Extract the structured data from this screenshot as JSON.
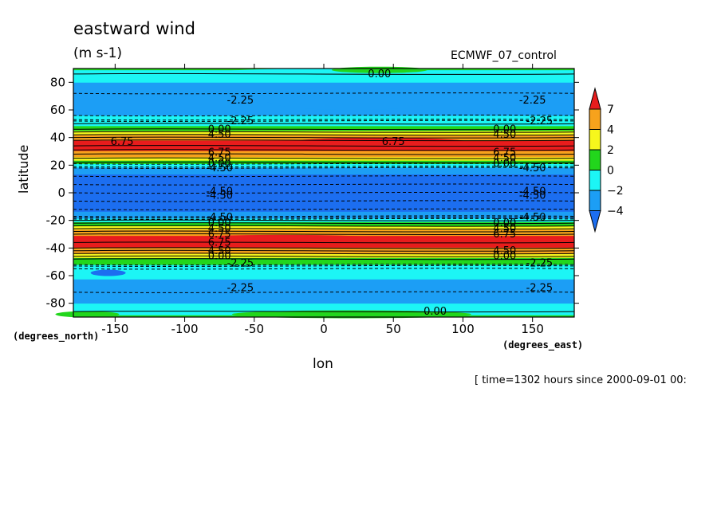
{
  "chart_data": {
    "type": "heatmap",
    "title": "eastward wind",
    "units": "(m s-1)",
    "dataset": "ECMWF_07_control",
    "xlabel": "lon",
    "ylabel": "latitude",
    "x_unit_note": "(degrees_east)",
    "y_unit_note": "(degrees_north)",
    "time_info": "[ time=1302 hours since 2000-09-01 00:",
    "xlim": [
      -180,
      180
    ],
    "ylim": [
      -90,
      90
    ],
    "x_ticks": [
      -150,
      -100,
      -50,
      0,
      50,
      100,
      150
    ],
    "y_ticks": [
      -80,
      -60,
      -40,
      -20,
      0,
      20,
      40,
      60,
      80
    ],
    "x_tick_labels": [
      "-150",
      "-100",
      "-50",
      "0",
      "50",
      "100",
      "150"
    ],
    "y_tick_labels": [
      "-80",
      "-60",
      "-40",
      "-20",
      "0",
      "20",
      "40",
      "60",
      "80"
    ],
    "colorbar": {
      "levels": [
        7,
        4,
        2,
        0,
        -2,
        -4
      ],
      "labels": [
        "7",
        "4",
        "2",
        "0",
        "−2",
        "−4"
      ],
      "colors": [
        "#e81d1d",
        "#f7a21c",
        "#f7f71c",
        "#22d61c",
        "#1cf5f5",
        "#1c9ef5",
        "#1c6ef0"
      ]
    },
    "zonal_profile": {
      "lat": [
        -90,
        -84,
        -76,
        -64,
        -56,
        -50,
        -46,
        -43,
        -40,
        -37,
        -34,
        -30,
        -27,
        -24,
        -21,
        -18,
        -12,
        -6,
        0,
        6,
        12,
        18,
        21,
        24,
        27,
        30,
        34,
        38,
        41,
        44,
        47,
        50,
        56,
        66,
        76,
        84,
        90
      ],
      "u": [
        0.5,
        -1.5,
        -2.5,
        -2.2,
        -1.2,
        0.5,
        2.5,
        4.5,
        6.75,
        8.5,
        8.0,
        6.75,
        4.5,
        2.0,
        0.0,
        -2.5,
        -4.5,
        -4.8,
        -4.8,
        -4.8,
        -4.5,
        -2.5,
        0.0,
        2.5,
        5.0,
        6.75,
        8.5,
        7.0,
        4.5,
        2.5,
        0.5,
        -0.5,
        -2.0,
        -3.0,
        -2.5,
        -1.5,
        0.3
      ]
    },
    "contour_labels": [
      {
        "text": "0.00",
        "lon": 40,
        "lat": 86
      },
      {
        "text": "-2.25",
        "lon": -60,
        "lat": 67
      },
      {
        "text": "-2.25",
        "lon": 150,
        "lat": 67
      },
      {
        "text": "-2.25",
        "lon": -60,
        "lat": 52
      },
      {
        "text": "-2.25",
        "lon": 155,
        "lat": 52
      },
      {
        "text": "0.00",
        "lon": -75,
        "lat": 46
      },
      {
        "text": "0.00",
        "lon": 130,
        "lat": 46
      },
      {
        "text": "4.50",
        "lon": -75,
        "lat": 42
      },
      {
        "text": "4.50",
        "lon": 130,
        "lat": 42
      },
      {
        "text": "6.75",
        "lon": -145,
        "lat": 37
      },
      {
        "text": "6.75",
        "lon": 50,
        "lat": 37
      },
      {
        "text": "6.75",
        "lon": -75,
        "lat": 29
      },
      {
        "text": "6.75",
        "lon": 130,
        "lat": 29
      },
      {
        "text": "4.50",
        "lon": -75,
        "lat": 25
      },
      {
        "text": "4.50",
        "lon": 130,
        "lat": 25
      },
      {
        "text": "0.00",
        "lon": -75,
        "lat": 21
      },
      {
        "text": "0.00",
        "lon": 130,
        "lat": 21
      },
      {
        "text": "-4.50",
        "lon": -75,
        "lat": 18
      },
      {
        "text": "-4.50",
        "lon": 150,
        "lat": 18
      },
      {
        "text": "-4.50",
        "lon": -75,
        "lat": 1
      },
      {
        "text": "-4.50",
        "lon": 150,
        "lat": 1
      },
      {
        "text": "-4.50",
        "lon": -75,
        "lat": -2
      },
      {
        "text": "-4.50",
        "lon": 150,
        "lat": -2
      },
      {
        "text": "-4.50",
        "lon": -75,
        "lat": -18
      },
      {
        "text": "-4.50",
        "lon": 150,
        "lat": -18
      },
      {
        "text": "0.00",
        "lon": -75,
        "lat": -22
      },
      {
        "text": "0.00",
        "lon": 130,
        "lat": -22
      },
      {
        "text": "4.50",
        "lon": -75,
        "lat": -26
      },
      {
        "text": "4.50",
        "lon": 130,
        "lat": -26
      },
      {
        "text": "6.75",
        "lon": -75,
        "lat": -30
      },
      {
        "text": "6.75",
        "lon": 130,
        "lat": -30
      },
      {
        "text": "6.75",
        "lon": -75,
        "lat": -36
      },
      {
        "text": "4.50",
        "lon": -75,
        "lat": -42
      },
      {
        "text": "4.50",
        "lon": 130,
        "lat": -42
      },
      {
        "text": "0.00",
        "lon": -75,
        "lat": -46
      },
      {
        "text": "0.00",
        "lon": 130,
        "lat": -46
      },
      {
        "text": "-2.25",
        "lon": -60,
        "lat": -51
      },
      {
        "text": "-2.25",
        "lon": 155,
        "lat": -51
      },
      {
        "text": "-2.25",
        "lon": -60,
        "lat": -69
      },
      {
        "text": "-2.25",
        "lon": 155,
        "lat": -69
      },
      {
        "text": "0.00",
        "lon": 80,
        "lat": -86
      }
    ]
  }
}
